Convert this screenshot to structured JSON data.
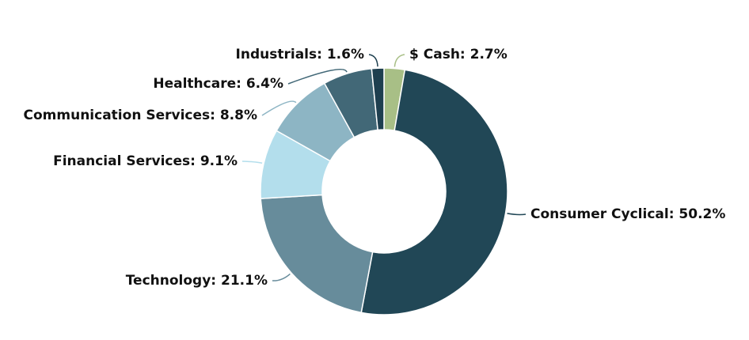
{
  "chart_data": {
    "type": "pie",
    "variant": "donut",
    "title": "",
    "slices": [
      {
        "label": "$ Cash: 2.7%",
        "name": "$ Cash",
        "value": 2.7,
        "color": "#a8bf86"
      },
      {
        "label": "Consumer Cyclical: 50.2%",
        "name": "Consumer Cyclical",
        "value": 50.2,
        "color": "#214756"
      },
      {
        "label": "Technology: 21.1%",
        "name": "Technology",
        "value": 21.1,
        "color": "#678c9b"
      },
      {
        "label": "Financial Services: 9.1%",
        "name": "Financial Services",
        "value": 9.1,
        "color": "#b3deec"
      },
      {
        "label": "Communication Services: 8.8%",
        "name": "Communication Services",
        "value": 8.8,
        "color": "#8db5c4"
      },
      {
        "label": "Healthcare: 6.4%",
        "name": "Healthcare",
        "value": 6.4,
        "color": "#426877"
      },
      {
        "label": "Industrials: 1.6%",
        "name": "Industrials",
        "value": 1.6,
        "color": "#1e3f4f"
      }
    ],
    "start_angle_deg": 0,
    "direction": "clockwise",
    "legend": "none",
    "data_labels": "outside-with-leader-lines"
  }
}
